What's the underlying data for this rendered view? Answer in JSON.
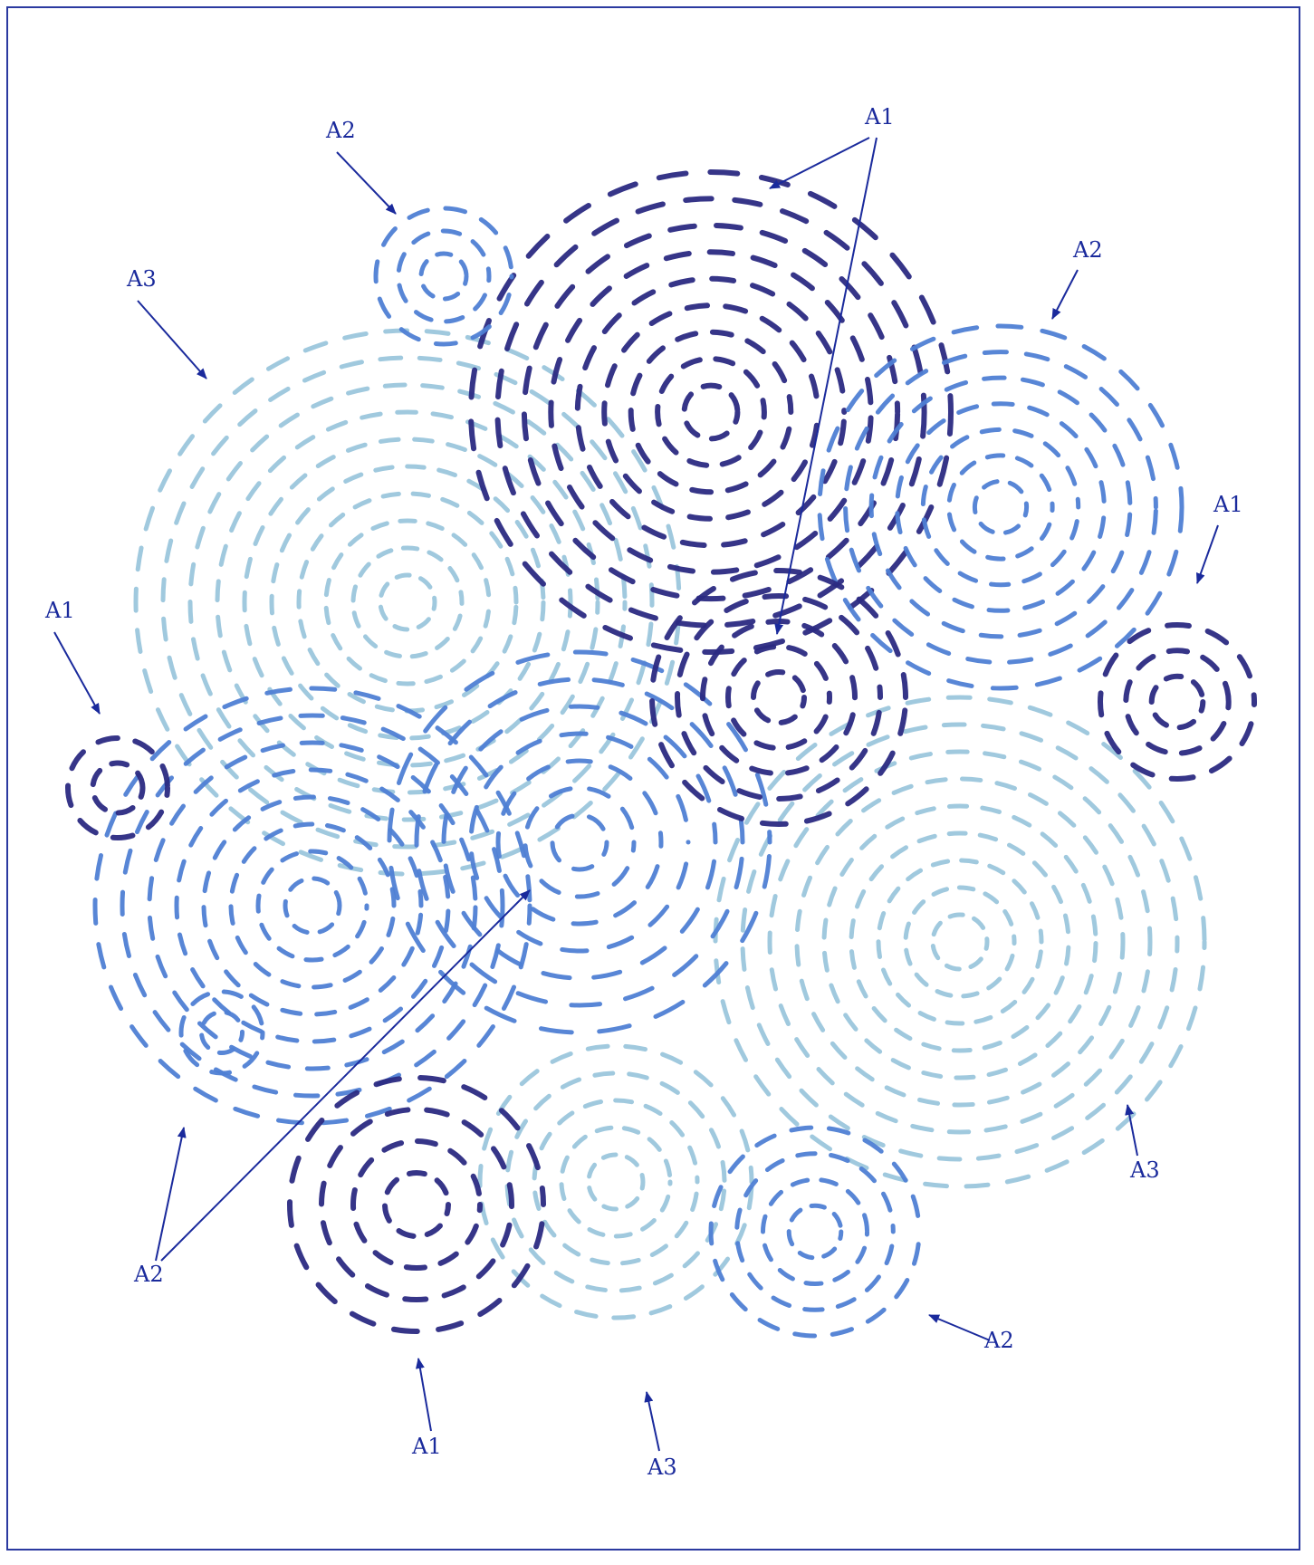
{
  "colors": {
    "frame": "#2b3aa0",
    "arrow": "#1a2a9c",
    "A1": "#2b2a82",
    "A2": "#4f7fd4",
    "A3": "#8fc0d8"
  },
  "clusters": [
    {
      "id": "c1",
      "category": "A1"
    },
    {
      "id": "c2",
      "category": "A2"
    },
    {
      "id": "c3",
      "category": "A2"
    },
    {
      "id": "c4",
      "category": "A3"
    },
    {
      "id": "c5",
      "category": "A2"
    },
    {
      "id": "c6",
      "category": "A1"
    },
    {
      "id": "c7",
      "category": "A1"
    },
    {
      "id": "c8",
      "category": "A1"
    },
    {
      "id": "c9",
      "category": "A3"
    },
    {
      "id": "c10",
      "category": "A2"
    },
    {
      "id": "c11",
      "category": "A2"
    },
    {
      "id": "c12",
      "category": "A1"
    },
    {
      "id": "c13",
      "category": "A3"
    },
    {
      "id": "c14",
      "category": "A2"
    }
  ],
  "labels": [
    {
      "id": "l1",
      "text": "A1"
    },
    {
      "id": "l2",
      "text": "A2"
    },
    {
      "id": "l3",
      "text": "A3"
    },
    {
      "id": "l4",
      "text": "A2"
    },
    {
      "id": "l5",
      "text": "A1"
    },
    {
      "id": "l6",
      "text": "A1"
    },
    {
      "id": "l7",
      "text": "A3"
    },
    {
      "id": "l8",
      "text": "A2"
    },
    {
      "id": "l9",
      "text": "A1"
    },
    {
      "id": "l10",
      "text": "A3"
    },
    {
      "id": "l11",
      "text": "A2"
    }
  ]
}
